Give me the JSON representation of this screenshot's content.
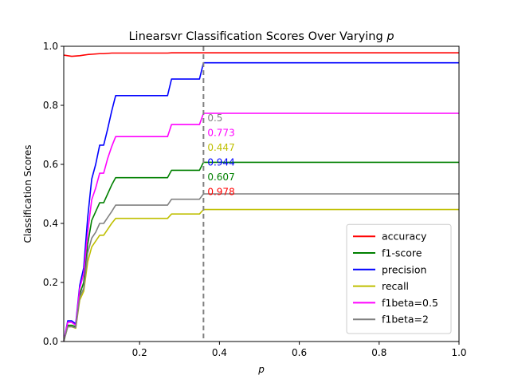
{
  "chart_data": {
    "type": "line",
    "title_main": "Linearsvr Classification Scores Over Varying ",
    "title_var": "p",
    "xlabel": "p",
    "ylabel": "Classification Scores",
    "xlim": [
      0.01,
      1.0
    ],
    "ylim": [
      0.0,
      1.0
    ],
    "xticks": [
      {
        "value": 0.2,
        "label": "0.2"
      },
      {
        "value": 0.4,
        "label": "0.4"
      },
      {
        "value": 0.6,
        "label": "0.6"
      },
      {
        "value": 0.8,
        "label": "0.8"
      },
      {
        "value": 1.0,
        "label": "1.0"
      }
    ],
    "yticks": [
      {
        "value": 0.0,
        "label": "0.0"
      },
      {
        "value": 0.2,
        "label": "0.2"
      },
      {
        "value": 0.4,
        "label": "0.4"
      },
      {
        "value": 0.6,
        "label": "0.6"
      },
      {
        "value": 0.8,
        "label": "0.8"
      },
      {
        "value": 1.0,
        "label": "1.0"
      }
    ],
    "grid": false,
    "legend_position": "lower-right",
    "vline": {
      "x": 0.36,
      "color": "#808080",
      "style": "dashed"
    },
    "x": [
      0.01,
      0.02,
      0.03,
      0.04,
      0.05,
      0.06,
      0.07,
      0.08,
      0.09,
      0.1,
      0.11,
      0.12,
      0.13,
      0.14,
      0.15,
      0.2,
      0.25,
      0.27,
      0.28,
      0.3,
      0.35,
      0.36,
      0.4,
      0.5,
      0.6,
      0.7,
      0.8,
      0.9,
      1.0
    ],
    "series": [
      {
        "name": "accuracy",
        "color": "#ff0000",
        "values": [
          0.97,
          0.968,
          0.966,
          0.967,
          0.968,
          0.97,
          0.972,
          0.973,
          0.974,
          0.975,
          0.975,
          0.976,
          0.977,
          0.977,
          0.977,
          0.977,
          0.977,
          0.977,
          0.978,
          0.978,
          0.978,
          0.978,
          0.978,
          0.978,
          0.978,
          0.978,
          0.978,
          0.978,
          0.978
        ]
      },
      {
        "name": "f1-score",
        "color": "#008000",
        "values": [
          0.0,
          0.055,
          0.055,
          0.05,
          0.16,
          0.2,
          0.33,
          0.41,
          0.44,
          0.47,
          0.47,
          0.5,
          0.53,
          0.555,
          0.555,
          0.555,
          0.555,
          0.555,
          0.58,
          0.58,
          0.58,
          0.607,
          0.607,
          0.607,
          0.607,
          0.607,
          0.607,
          0.607,
          0.607
        ]
      },
      {
        "name": "precision",
        "color": "#0000ff",
        "values": [
          0.0,
          0.07,
          0.07,
          0.06,
          0.19,
          0.25,
          0.42,
          0.55,
          0.6,
          0.665,
          0.665,
          0.72,
          0.78,
          0.833,
          0.833,
          0.833,
          0.833,
          0.833,
          0.889,
          0.889,
          0.889,
          0.944,
          0.944,
          0.944,
          0.944,
          0.944,
          0.944,
          0.944,
          0.944
        ]
      },
      {
        "name": "recall",
        "color": "#bfbf00",
        "values": [
          0.0,
          0.05,
          0.05,
          0.045,
          0.14,
          0.17,
          0.27,
          0.32,
          0.34,
          0.36,
          0.36,
          0.38,
          0.4,
          0.417,
          0.417,
          0.417,
          0.417,
          0.417,
          0.432,
          0.432,
          0.432,
          0.447,
          0.447,
          0.447,
          0.447,
          0.447,
          0.447,
          0.447,
          0.447
        ]
      },
      {
        "name": "f1beta=0.5",
        "color": "#ff00ff",
        "values": [
          0.0,
          0.065,
          0.065,
          0.055,
          0.18,
          0.23,
          0.37,
          0.48,
          0.52,
          0.57,
          0.57,
          0.62,
          0.66,
          0.694,
          0.694,
          0.694,
          0.694,
          0.694,
          0.735,
          0.735,
          0.735,
          0.773,
          0.773,
          0.773,
          0.773,
          0.773,
          0.773,
          0.773,
          0.773
        ]
      },
      {
        "name": "f1beta=2",
        "color": "#808080",
        "values": [
          0.0,
          0.05,
          0.05,
          0.047,
          0.15,
          0.18,
          0.3,
          0.35,
          0.37,
          0.4,
          0.4,
          0.42,
          0.44,
          0.462,
          0.462,
          0.462,
          0.462,
          0.462,
          0.482,
          0.482,
          0.482,
          0.5,
          0.5,
          0.5,
          0.5,
          0.5,
          0.5,
          0.5,
          0.5
        ]
      }
    ],
    "annotations": [
      {
        "text": "0.5",
        "y": 0.76,
        "color": "#808080"
      },
      {
        "text": "0.773",
        "y": 0.71,
        "color": "#ff00ff"
      },
      {
        "text": "0.447",
        "y": 0.66,
        "color": "#bfbf00"
      },
      {
        "text": "0.944",
        "y": 0.61,
        "color": "#0000ff"
      },
      {
        "text": "0.607",
        "y": 0.56,
        "color": "#008000"
      },
      {
        "text": "0.978",
        "y": 0.51,
        "color": "#ff0000"
      }
    ]
  }
}
